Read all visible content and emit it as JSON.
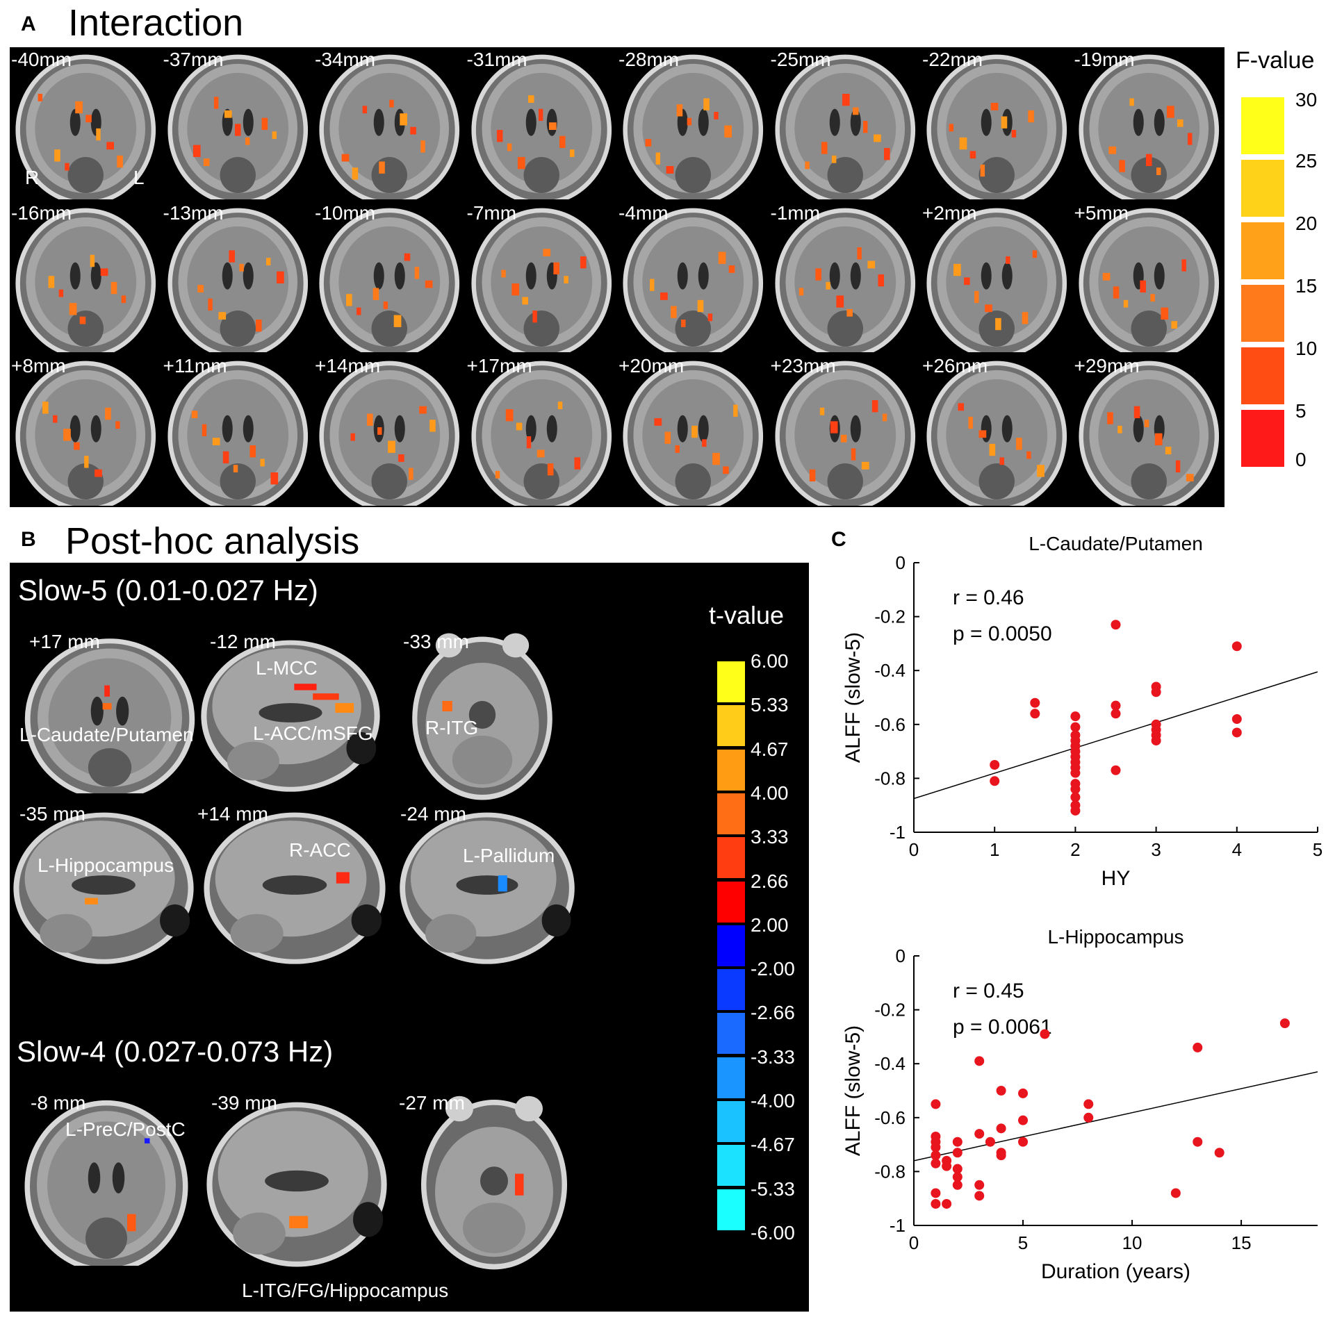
{
  "panel_a": {
    "letter": "A",
    "title": "Interaction",
    "slices": [
      [
        "-40mm",
        "-37mm",
        "-34mm",
        "-31mm",
        "-28mm",
        "-25mm",
        "-22mm",
        "-19mm"
      ],
      [
        "-16mm",
        "-13mm",
        "-10mm",
        "-7mm",
        "-4mm",
        "-1mm",
        "+2mm",
        "+5mm"
      ],
      [
        "+8mm",
        "+11mm",
        "+14mm",
        "+17mm",
        "+20mm",
        "+23mm",
        "+26mm",
        "+29mm"
      ]
    ],
    "orientation": {
      "right": "R",
      "left": "L"
    },
    "colorbar": {
      "title": "F-value",
      "ticks": [
        "30",
        "25",
        "20",
        "15",
        "10",
        "5",
        "0"
      ],
      "colors": [
        "#ffff1a",
        "#ffd21a",
        "#ffa21a",
        "#ff7a1a",
        "#ff4d14",
        "#ff1a1a"
      ]
    }
  },
  "panel_b": {
    "letter": "B",
    "title": "Post-hoc analysis",
    "slow5": {
      "heading": "Slow-5 (0.01-0.027 Hz)",
      "slices": [
        {
          "coord": "+17 mm",
          "labels": [
            "L-Caudate/Putamen"
          ]
        },
        {
          "coord": "-12 mm",
          "labels": [
            "L-MCC",
            "L-ACC/mSFG"
          ]
        },
        {
          "coord": "-33 mm",
          "labels": [
            "R-ITG"
          ]
        },
        {
          "coord": "-35 mm",
          "labels": [
            "L-Hippocampus"
          ]
        },
        {
          "coord": "+14 mm",
          "labels": [
            "R-ACC"
          ]
        },
        {
          "coord": "-24  mm",
          "labels": [
            "L-Pallidum"
          ]
        }
      ]
    },
    "slow4": {
      "heading": "Slow-4 (0.027-0.073 Hz)",
      "slices": [
        {
          "coord": "-8 mm",
          "labels": [
            "L-PreC/PostC"
          ]
        },
        {
          "coord": "-39 mm",
          "labels": []
        },
        {
          "coord": "-27 mm",
          "labels": []
        }
      ],
      "footer_label": "L-ITG/FG/Hippocampus"
    },
    "colorbar": {
      "title": "t-value",
      "ticks": [
        "6.00",
        "5.33",
        "4.67",
        "4.00",
        "3.33",
        "2.66",
        "2.00",
        "-2.00",
        "-2.66",
        "-3.33",
        "-4.00",
        "-4.67",
        "-5.33",
        "-6.00"
      ],
      "colors": [
        "#ffff1a",
        "#ffcc1a",
        "#ff9c14",
        "#ff6e14",
        "#ff3d10",
        "#ff0000",
        "#0000ff",
        "#0a3aff",
        "#1a6aff",
        "#1a95ff",
        "#1ac2ff",
        "#1ae2ff",
        "#1affff"
      ]
    }
  },
  "panel_c": {
    "letter": "C"
  },
  "chart_data": [
    {
      "type": "scatter",
      "title": "L-Caudate/Putamen",
      "xlabel": "HY",
      "ylabel": "ALFF (slow-5)",
      "xlim": [
        0,
        5
      ],
      "ylim": [
        -1,
        0
      ],
      "xticks": [
        "0",
        "1",
        "2",
        "3",
        "4",
        "5"
      ],
      "yticks": [
        "0",
        "-0.2",
        "-0.4",
        "-0.6",
        "-0.8",
        "-1"
      ],
      "stats": [
        "r = 0.46",
        "p = 0.0050"
      ],
      "fit_line": [
        [
          0,
          -0.875
        ],
        [
          5,
          -0.405
        ]
      ],
      "marker_color": "#e8141e",
      "points": [
        [
          1,
          -0.75
        ],
        [
          1,
          -0.81
        ],
        [
          1.5,
          -0.52
        ],
        [
          1.5,
          -0.56
        ],
        [
          2,
          -0.57
        ],
        [
          2,
          -0.61
        ],
        [
          2,
          -0.64
        ],
        [
          2,
          -0.66
        ],
        [
          2,
          -0.68
        ],
        [
          2,
          -0.7
        ],
        [
          2,
          -0.72
        ],
        [
          2,
          -0.74
        ],
        [
          2,
          -0.76
        ],
        [
          2,
          -0.78
        ],
        [
          2,
          -0.82
        ],
        [
          2,
          -0.84
        ],
        [
          2,
          -0.87
        ],
        [
          2,
          -0.9
        ],
        [
          2,
          -0.92
        ],
        [
          2.5,
          -0.23
        ],
        [
          2.5,
          -0.53
        ],
        [
          2.5,
          -0.56
        ],
        [
          2.5,
          -0.77
        ],
        [
          3,
          -0.46
        ],
        [
          3,
          -0.48
        ],
        [
          3,
          -0.6
        ],
        [
          3,
          -0.62
        ],
        [
          3,
          -0.64
        ],
        [
          3,
          -0.66
        ],
        [
          4,
          -0.31
        ],
        [
          4,
          -0.58
        ],
        [
          4,
          -0.63
        ]
      ]
    },
    {
      "type": "scatter",
      "title": "L-Hippocampus",
      "xlabel": "Duration (years)",
      "ylabel": "ALFF (slow-5)",
      "xlim": [
        0,
        18.5
      ],
      "ylim": [
        -1,
        0
      ],
      "xticks": [
        "0",
        "5",
        "10",
        "15"
      ],
      "xtick_values": [
        0,
        5,
        10,
        15
      ],
      "yticks": [
        "0",
        "-0.2",
        "-0.4",
        "-0.6",
        "-0.8",
        "-1"
      ],
      "stats": [
        "r = 0.45",
        "p = 0.0061"
      ],
      "fit_line": [
        [
          0,
          -0.76
        ],
        [
          18.5,
          -0.43
        ]
      ],
      "marker_color": "#e8141e",
      "points": [
        [
          1,
          -0.55
        ],
        [
          1,
          -0.67
        ],
        [
          1,
          -0.69
        ],
        [
          1,
          -0.71
        ],
        [
          1,
          -0.74
        ],
        [
          1,
          -0.77
        ],
        [
          1,
          -0.88
        ],
        [
          1,
          -0.92
        ],
        [
          1.5,
          -0.76
        ],
        [
          1.5,
          -0.78
        ],
        [
          1.5,
          -0.92
        ],
        [
          2,
          -0.69
        ],
        [
          2,
          -0.73
        ],
        [
          2,
          -0.79
        ],
        [
          2,
          -0.82
        ],
        [
          2,
          -0.85
        ],
        [
          3,
          -0.39
        ],
        [
          3,
          -0.66
        ],
        [
          3,
          -0.85
        ],
        [
          3,
          -0.89
        ],
        [
          3.5,
          -0.69
        ],
        [
          4,
          -0.5
        ],
        [
          4,
          -0.64
        ],
        [
          4,
          -0.73
        ],
        [
          4,
          -0.74
        ],
        [
          5,
          -0.51
        ],
        [
          5,
          -0.61
        ],
        [
          5,
          -0.69
        ],
        [
          6,
          -0.29
        ],
        [
          8,
          -0.55
        ],
        [
          8,
          -0.6
        ],
        [
          12,
          -0.88
        ],
        [
          13,
          -0.34
        ],
        [
          13,
          -0.69
        ],
        [
          14,
          -0.73
        ],
        [
          17,
          -0.25
        ]
      ]
    }
  ]
}
